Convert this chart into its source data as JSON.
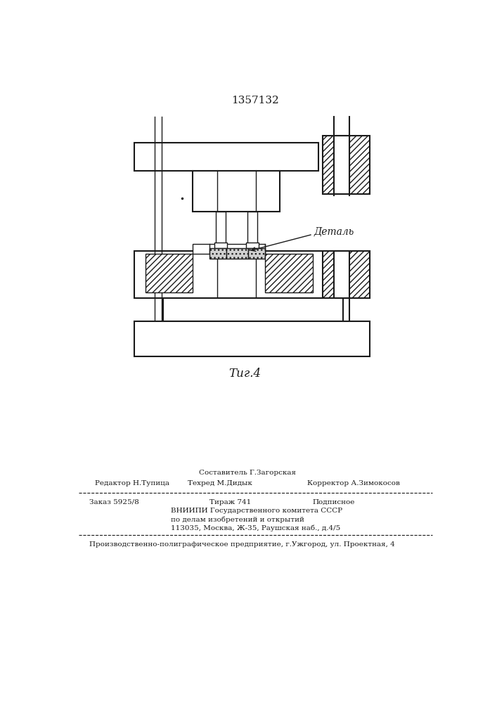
{
  "title": "1357132",
  "fig_label": "Τиг.4",
  "detail_label": "Деталь",
  "bg_color": "#ffffff",
  "line_color": "#1a1a1a"
}
